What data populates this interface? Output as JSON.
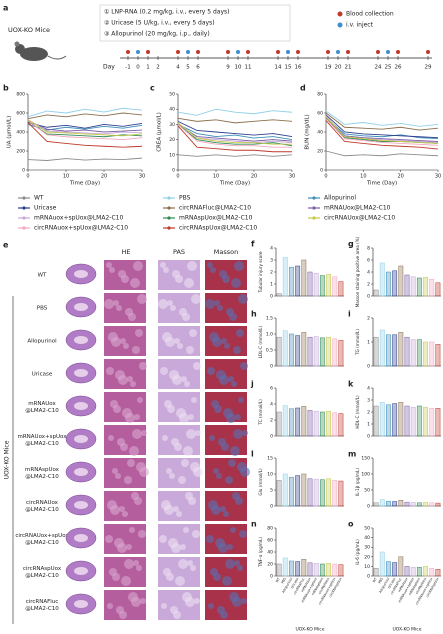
{
  "timeline": {
    "panel": "a",
    "mouse_label": "UOX-KO Mice",
    "treatments": [
      "① LNP-RNA (0.2 mg/kg, i.v., every 5 days)",
      "② Uricase (5 U/kg, i.v., every 5 days)",
      "③ Allopurinol (20 mg/kg, i.p., daily)"
    ],
    "legend": [
      {
        "label": "Blood collection",
        "color": "#c0392b"
      },
      {
        "label": "i.v. inject",
        "color": "#3b8fd0"
      }
    ],
    "day_label": "Day",
    "days": [
      -1,
      0,
      1,
      2,
      4,
      5,
      6,
      9,
      10,
      11,
      14,
      15,
      16,
      19,
      20,
      21,
      24,
      25,
      26,
      29
    ],
    "blood_days": [
      -1,
      1,
      4,
      6,
      9,
      11,
      14,
      16,
      19,
      21,
      24,
      26,
      29
    ],
    "inject_days": [
      0,
      5,
      10,
      15,
      20,
      25
    ]
  },
  "chart_data": [
    {
      "type": "line",
      "panel": "b",
      "ylabel": "UA (μmol/L)",
      "xlabel": "Time (Day)",
      "x": [
        0,
        5,
        10,
        15,
        20,
        25,
        30
      ],
      "xlim": [
        0,
        30
      ],
      "xticks": [
        0,
        10,
        20,
        30
      ],
      "ylim": [
        0,
        800
      ],
      "yticks": [
        0,
        200,
        400,
        600,
        800
      ],
      "series": [
        {
          "name": "WT",
          "color": "#8c8c8c",
          "values": [
            110,
            100,
            120,
            105,
            115,
            110,
            125
          ]
        },
        {
          "name": "PBS",
          "color": "#8fd0e8",
          "values": [
            560,
            620,
            600,
            640,
            610,
            650,
            630
          ]
        },
        {
          "name": "Allopurinol",
          "color": "#3f8fb8",
          "values": [
            480,
            420,
            450,
            430,
            460,
            440,
            470
          ]
        },
        {
          "name": "Uricase",
          "color": "#2e3f8f",
          "values": [
            500,
            450,
            470,
            440,
            480,
            460,
            490
          ]
        },
        {
          "name": "circRNAFluc@LMA2-C10",
          "color": "#8b6f4e",
          "values": [
            540,
            580,
            560,
            590,
            570,
            600,
            580
          ]
        },
        {
          "name": "mRNAUox@LMA2-C10",
          "color": "#7b5ea7",
          "values": [
            520,
            430,
            410,
            420,
            400,
            410,
            420
          ]
        },
        {
          "name": "mRNAuox+spUox@LMA2-C10",
          "color": "#c5a8d8",
          "values": [
            530,
            410,
            400,
            390,
            380,
            400,
            390
          ]
        },
        {
          "name": "mRNAspUox@LMA2-C10",
          "color": "#2e8b57",
          "values": [
            510,
            380,
            370,
            360,
            350,
            370,
            360
          ]
        },
        {
          "name": "circRNAUox@LMA2-C10",
          "color": "#c8c84a",
          "values": [
            530,
            400,
            390,
            380,
            370,
            360,
            380
          ]
        },
        {
          "name": "circRNAuox+spUox@LMA2-C10",
          "color": "#f2a6c0",
          "values": [
            520,
            370,
            350,
            340,
            330,
            320,
            340
          ]
        },
        {
          "name": "circRNAspUox@LMA2-C10",
          "color": "#c0392b",
          "values": [
            500,
            300,
            280,
            260,
            250,
            240,
            250
          ]
        }
      ]
    },
    {
      "type": "line",
      "panel": "c",
      "ylabel": "CREA (μmol/L)",
      "xlabel": "Time (Day)",
      "x": [
        0,
        5,
        10,
        15,
        20,
        25,
        30
      ],
      "xlim": [
        0,
        30
      ],
      "xticks": [
        0,
        10,
        20,
        30
      ],
      "ylim": [
        0,
        50
      ],
      "yticks": [
        0,
        10,
        20,
        30,
        40,
        50
      ],
      "series": [
        {
          "color": "#8c8c8c",
          "values": [
            10,
            9,
            10,
            9,
            10,
            9,
            10
          ]
        },
        {
          "color": "#8fd0e8",
          "values": [
            38,
            36,
            40,
            38,
            37,
            39,
            38
          ]
        },
        {
          "color": "#3f8fb8",
          "values": [
            30,
            24,
            22,
            23,
            21,
            22,
            20
          ]
        },
        {
          "color": "#2e3f8f",
          "values": [
            32,
            26,
            25,
            24,
            23,
            24,
            22
          ]
        },
        {
          "color": "#8b6f4e",
          "values": [
            34,
            32,
            33,
            31,
            32,
            33,
            32
          ]
        },
        {
          "color": "#7b5ea7",
          "values": [
            30,
            22,
            21,
            20,
            19,
            20,
            19
          ]
        },
        {
          "color": "#c5a8d8",
          "values": [
            31,
            21,
            20,
            19,
            18,
            19,
            18
          ]
        },
        {
          "color": "#2e8b57",
          "values": [
            30,
            20,
            18,
            17,
            17,
            18,
            16
          ]
        },
        {
          "color": "#c8c84a",
          "values": [
            31,
            21,
            19,
            18,
            18,
            17,
            17
          ]
        },
        {
          "color": "#f2a6c0",
          "values": [
            30,
            19,
            17,
            16,
            16,
            15,
            15
          ]
        },
        {
          "color": "#c0392b",
          "values": [
            29,
            15,
            14,
            13,
            13,
            12,
            12
          ]
        }
      ]
    },
    {
      "type": "line",
      "panel": "d",
      "ylabel": "BUN (mg/dL)",
      "xlabel": "Time (Day)",
      "x": [
        0,
        5,
        10,
        15,
        20,
        25,
        30
      ],
      "xlim": [
        0,
        30
      ],
      "xticks": [
        0,
        10,
        20,
        30
      ],
      "ylim": [
        0,
        80
      ],
      "yticks": [
        0,
        20,
        40,
        60,
        80
      ],
      "series": [
        {
          "color": "#8c8c8c",
          "values": [
            20,
            15,
            16,
            15,
            17,
            16,
            15
          ]
        },
        {
          "color": "#8fd0e8",
          "values": [
            62,
            48,
            50,
            47,
            49,
            46,
            48
          ]
        },
        {
          "color": "#3f8fb8",
          "values": [
            55,
            38,
            36,
            35,
            37,
            34,
            33
          ]
        },
        {
          "color": "#2e3f8f",
          "values": [
            58,
            40,
            38,
            37,
            36,
            35,
            34
          ]
        },
        {
          "color": "#8b6f4e",
          "values": [
            60,
            45,
            44,
            43,
            45,
            42,
            44
          ]
        },
        {
          "color": "#7b5ea7",
          "values": [
            56,
            36,
            34,
            33,
            32,
            31,
            30
          ]
        },
        {
          "color": "#c5a8d8",
          "values": [
            57,
            35,
            33,
            32,
            31,
            30,
            29
          ]
        },
        {
          "color": "#2e8b57",
          "values": [
            55,
            34,
            32,
            30,
            30,
            29,
            28
          ]
        },
        {
          "color": "#c8c84a",
          "values": [
            56,
            35,
            33,
            31,
            30,
            29,
            28
          ]
        },
        {
          "color": "#f2a6c0",
          "values": [
            54,
            33,
            31,
            29,
            28,
            27,
            26
          ]
        },
        {
          "color": "#c0392b",
          "values": [
            52,
            30,
            28,
            26,
            25,
            24,
            22
          ]
        }
      ]
    },
    {
      "type": "bar",
      "panel": "f",
      "ylabel": "Tubular injury score",
      "ylim": [
        0,
        4
      ],
      "yticks": [
        0,
        1,
        2,
        3,
        4
      ],
      "colors": [
        "#8c8c8c",
        "#8fd0e8",
        "#3f8fb8",
        "#2e3f8f",
        "#8b6f4e",
        "#7b5ea7",
        "#c5a8d8",
        "#2e8b57",
        "#c8c84a",
        "#f2a6c0",
        "#c0392b"
      ],
      "values": [
        0.2,
        3.2,
        2.4,
        2.5,
        3.0,
        2.0,
        1.9,
        1.7,
        1.8,
        1.6,
        1.2
      ]
    },
    {
      "type": "bar",
      "panel": "g",
      "ylabel": "Masson staining positive area (%)",
      "ylim": [
        0,
        8
      ],
      "yticks": [
        0,
        2,
        4,
        6,
        8
      ],
      "colors": [
        "#8c8c8c",
        "#8fd0e8",
        "#3f8fb8",
        "#2e3f8f",
        "#8b6f4e",
        "#7b5ea7",
        "#c5a8d8",
        "#2e8b57",
        "#c8c84a",
        "#f2a6c0",
        "#c0392b"
      ],
      "values": [
        1.0,
        5.5,
        4.0,
        4.2,
        5.0,
        3.5,
        3.2,
        3.0,
        3.1,
        2.8,
        2.2
      ]
    },
    {
      "type": "bar",
      "panel": "h",
      "ylabel": "LDL-C (mmol/L)",
      "ylim": [
        0,
        1.5
      ],
      "yticks": [
        0,
        0.5,
        {
          "value": 1,
          "label": "1.0"
        },
        1.5
      ],
      "colors": [
        "#8c8c8c",
        "#8fd0e8",
        "#3f8fb8",
        "#2e3f8f",
        "#8b6f4e",
        "#7b5ea7",
        "#c5a8d8",
        "#2e8b57",
        "#c8c84a",
        "#f2a6c0",
        "#c0392b"
      ],
      "values": [
        0.9,
        1.1,
        1.0,
        0.95,
        1.05,
        0.9,
        0.92,
        0.88,
        0.9,
        0.85,
        0.8
      ]
    },
    {
      "type": "bar",
      "panel": "i",
      "ylabel": "TG (mmol/L)",
      "ylim": [
        0,
        2
      ],
      "yticks": [
        0,
        1,
        2
      ],
      "colors": [
        "#8c8c8c",
        "#8fd0e8",
        "#3f8fb8",
        "#2e3f8f",
        "#8b6f4e",
        "#7b5ea7",
        "#c5a8d8",
        "#2e8b57",
        "#c8c84a",
        "#f2a6c0",
        "#c0392b"
      ],
      "values": [
        1.2,
        1.5,
        1.3,
        1.3,
        1.4,
        1.2,
        1.1,
        1.1,
        1.0,
        1.0,
        0.9
      ]
    },
    {
      "type": "bar",
      "panel": "j",
      "ylabel": "TC (mmol/L)",
      "ylim": [
        0,
        6
      ],
      "yticks": [
        0,
        2,
        4,
        6
      ],
      "colors": [
        "#8c8c8c",
        "#8fd0e8",
        "#3f8fb8",
        "#2e3f8f",
        "#8b6f4e",
        "#7b5ea7",
        "#c5a8d8",
        "#2e8b57",
        "#c8c84a",
        "#f2a6c0",
        "#c0392b"
      ],
      "values": [
        3.0,
        3.8,
        3.4,
        3.5,
        3.7,
        3.2,
        3.1,
        3.0,
        3.1,
        2.9,
        2.8
      ]
    },
    {
      "type": "bar",
      "panel": "k",
      "ylabel": "HDL-C (mmol/L)",
      "ylim": [
        0,
        4
      ],
      "yticks": [
        0,
        1,
        2,
        3,
        4
      ],
      "colors": [
        "#8c8c8c",
        "#8fd0e8",
        "#3f8fb8",
        "#2e3f8f",
        "#8b6f4e",
        "#7b5ea7",
        "#c5a8d8",
        "#2e8b57",
        "#c8c84a",
        "#f2a6c0",
        "#c0392b"
      ],
      "values": [
        2.5,
        2.8,
        2.6,
        2.7,
        2.8,
        2.5,
        2.4,
        2.5,
        2.4,
        2.3,
        2.3
      ]
    },
    {
      "type": "bar",
      "panel": "l",
      "ylabel": "Glu (mmol/L)",
      "ylim": [
        0,
        15
      ],
      "yticks": [
        0,
        5,
        10,
        15
      ],
      "colors": [
        "#8c8c8c",
        "#8fd0e8",
        "#3f8fb8",
        "#2e3f8f",
        "#8b6f4e",
        "#7b5ea7",
        "#c5a8d8",
        "#2e8b57",
        "#c8c84a",
        "#f2a6c0",
        "#c0392b"
      ],
      "values": [
        8,
        10,
        9,
        9.5,
        10,
        8.5,
        8.4,
        8.2,
        8.5,
        8,
        7.8
      ]
    },
    {
      "type": "bar",
      "panel": "m",
      "ylabel": "IL-1β (pg/mL)",
      "ylim": [
        0,
        150
      ],
      "yticks": [
        0,
        50,
        100,
        150
      ],
      "colors": [
        "#8c8c8c",
        "#8fd0e8",
        "#3f8fb8",
        "#2e3f8f",
        "#8b6f4e",
        "#7b5ea7",
        "#c5a8d8",
        "#2e8b57",
        "#c8c84a",
        "#f2a6c0",
        "#c0392b"
      ],
      "values": [
        10,
        20,
        15,
        14,
        18,
        12,
        11,
        10,
        11,
        10,
        9
      ]
    },
    {
      "type": "bar",
      "panel": "n",
      "ylabel": "TNF-α (pg/mL)",
      "xlabel": "UOX-KO Mice",
      "ylim": [
        0,
        80
      ],
      "yticks": [
        0,
        20,
        40,
        60,
        80
      ],
      "colors": [
        "#8c8c8c",
        "#8fd0e8",
        "#3f8fb8",
        "#2e3f8f",
        "#8b6f4e",
        "#7b5ea7",
        "#c5a8d8",
        "#2e8b57",
        "#c8c84a",
        "#f2a6c0",
        "#c0392b"
      ],
      "categories": [
        "WT",
        "PBS",
        "Allopurinol",
        "Uricase",
        "circRNAFluc",
        "mRNAUox",
        "mRNAuox+spUox",
        "mRNAspUox",
        "circRNAUox",
        "circRNAuox+spUox",
        "circRNAspUox"
      ],
      "values": [
        20,
        30,
        25,
        24,
        28,
        22,
        21,
        20,
        21,
        20,
        19
      ]
    },
    {
      "type": "bar",
      "panel": "o",
      "ylabel": "IL-6 (pg/mL)",
      "xlabel": "UOX-KO Mice",
      "ylim": [
        0,
        50
      ],
      "yticks": [
        0,
        10,
        20,
        30,
        40,
        50
      ],
      "colors": [
        "#8c8c8c",
        "#8fd0e8",
        "#3f8fb8",
        "#2e3f8f",
        "#8b6f4e",
        "#7b5ea7",
        "#c5a8d8",
        "#2e8b57",
        "#c8c84a",
        "#f2a6c0",
        "#c0392b"
      ],
      "categories": [
        "WT",
        "PBS",
        "Allopurinol",
        "Uricase",
        "circRNAFluc",
        "mRNAUox",
        "mRNAuox+spUox",
        "mRNAspUox",
        "circRNAUox",
        "circRNAuox+spUox",
        "circRNAspUox"
      ],
      "values": [
        8,
        25,
        15,
        14,
        20,
        10,
        9,
        9,
        10,
        8,
        7
      ]
    }
  ],
  "histology": {
    "panel": "e",
    "columns": [
      "HE",
      "PAS",
      "Masson"
    ],
    "group_label": "UOX-KO Mice",
    "rows": [
      [
        "WT"
      ],
      [
        "PBS"
      ],
      [
        "Allopurinol"
      ],
      [
        "Uricase"
      ],
      [
        "mRNAUox",
        "@LMA2-C10"
      ],
      [
        "mRNAUox+spUox",
        "@LMA2-C10"
      ],
      [
        "mRNAspUox",
        "@LMA2-C10"
      ],
      [
        "circRNAUox",
        "@LMA2-C10"
      ],
      [
        "circRNAUox+spUox",
        "@LMA2-C10"
      ],
      [
        "circRNAspUox",
        "@LMA2-C10"
      ],
      [
        "circRNAFluc",
        "@LMA2-C10"
      ]
    ]
  }
}
